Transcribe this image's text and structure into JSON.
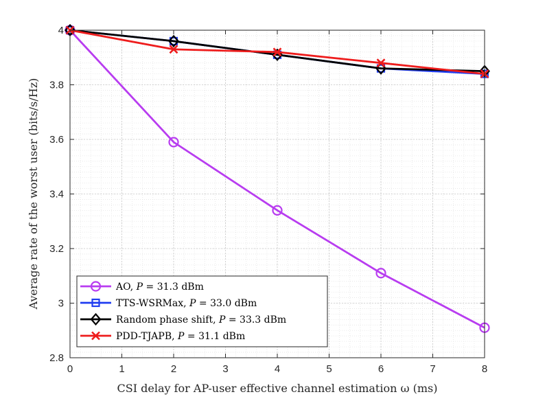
{
  "chart_data": {
    "type": "line",
    "title": "",
    "xlabel": "CSI delay for AP-user effective channel estimation ω (ms)",
    "ylabel": "Average rate of the worst user (bits/s/Hz)",
    "xlim": [
      0,
      8
    ],
    "ylim": [
      2.8,
      4.0
    ],
    "xticks": [
      0,
      1,
      2,
      3,
      4,
      5,
      6,
      7,
      8
    ],
    "yticks": [
      2.8,
      3.0,
      3.2,
      3.4,
      3.6,
      3.8,
      4.0
    ],
    "xtick_labels": [
      "0",
      "1",
      "2",
      "3",
      "4",
      "5",
      "6",
      "7",
      "8"
    ],
    "ytick_labels": [
      "2.8",
      "3",
      "3.2",
      "3.4",
      "3.6",
      "3.8",
      "4"
    ],
    "grid": "major and minor dotted",
    "legend_position": "bottom-left",
    "x": [
      0,
      2,
      4,
      6,
      8
    ],
    "series": [
      {
        "name": "AO, P = 31.3 dBm",
        "label_main": "AO, ",
        "label_var": "P",
        "label_rest": " = 31.3 dBm",
        "color": "#b83cf0",
        "marker": "circle",
        "values": [
          4.0,
          3.59,
          3.34,
          3.11,
          2.91
        ]
      },
      {
        "name": "TTS-WSRMax, P = 33.0 dBm",
        "label_main": "TTS-WSRMax, ",
        "label_var": "P",
        "label_rest": " = 33.0 dBm",
        "color": "#1f3cf0",
        "marker": "square",
        "values": [
          4.0,
          3.96,
          3.91,
          3.86,
          3.84
        ]
      },
      {
        "name": "Random phase shift, P = 33.3 dBm",
        "label_main": "Random phase shift, ",
        "label_var": "P",
        "label_rest": " = 33.3 dBm",
        "color": "#000000",
        "marker": "diamond",
        "values": [
          4.0,
          3.96,
          3.91,
          3.86,
          3.85
        ]
      },
      {
        "name": "PDD-TJAPB, P = 31.1 dBm",
        "label_main": "PDD-TJAPB, ",
        "label_var": "P",
        "label_rest": " = 31.1 dBm",
        "color": "#ee1c1c",
        "marker": "cross",
        "values": [
          4.0,
          3.93,
          3.92,
          3.88,
          3.84
        ]
      }
    ]
  }
}
